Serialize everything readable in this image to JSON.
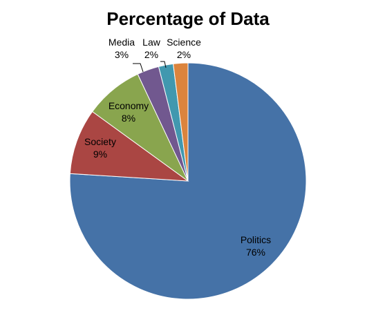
{
  "chart_data": {
    "type": "pie",
    "title": "Percentage of Data",
    "start_angle_deg": 0,
    "direction": "clockwise",
    "slices": [
      {
        "label": "Politics",
        "value": 76,
        "display": "76%",
        "color": "#4572A7"
      },
      {
        "label": "Society",
        "value": 9,
        "display": "9%",
        "color": "#AA4643"
      },
      {
        "label": "Economy",
        "value": 8,
        "display": "8%",
        "color": "#89A54E"
      },
      {
        "label": "Media",
        "value": 3,
        "display": "3%",
        "color": "#71588F"
      },
      {
        "label": "Law",
        "value": 2,
        "display": "2%",
        "color": "#4198AF"
      },
      {
        "label": "Science",
        "value": 2,
        "display": "2%",
        "color": "#DB843D"
      }
    ],
    "legend": "none",
    "data_labels": "category name and percentage"
  }
}
